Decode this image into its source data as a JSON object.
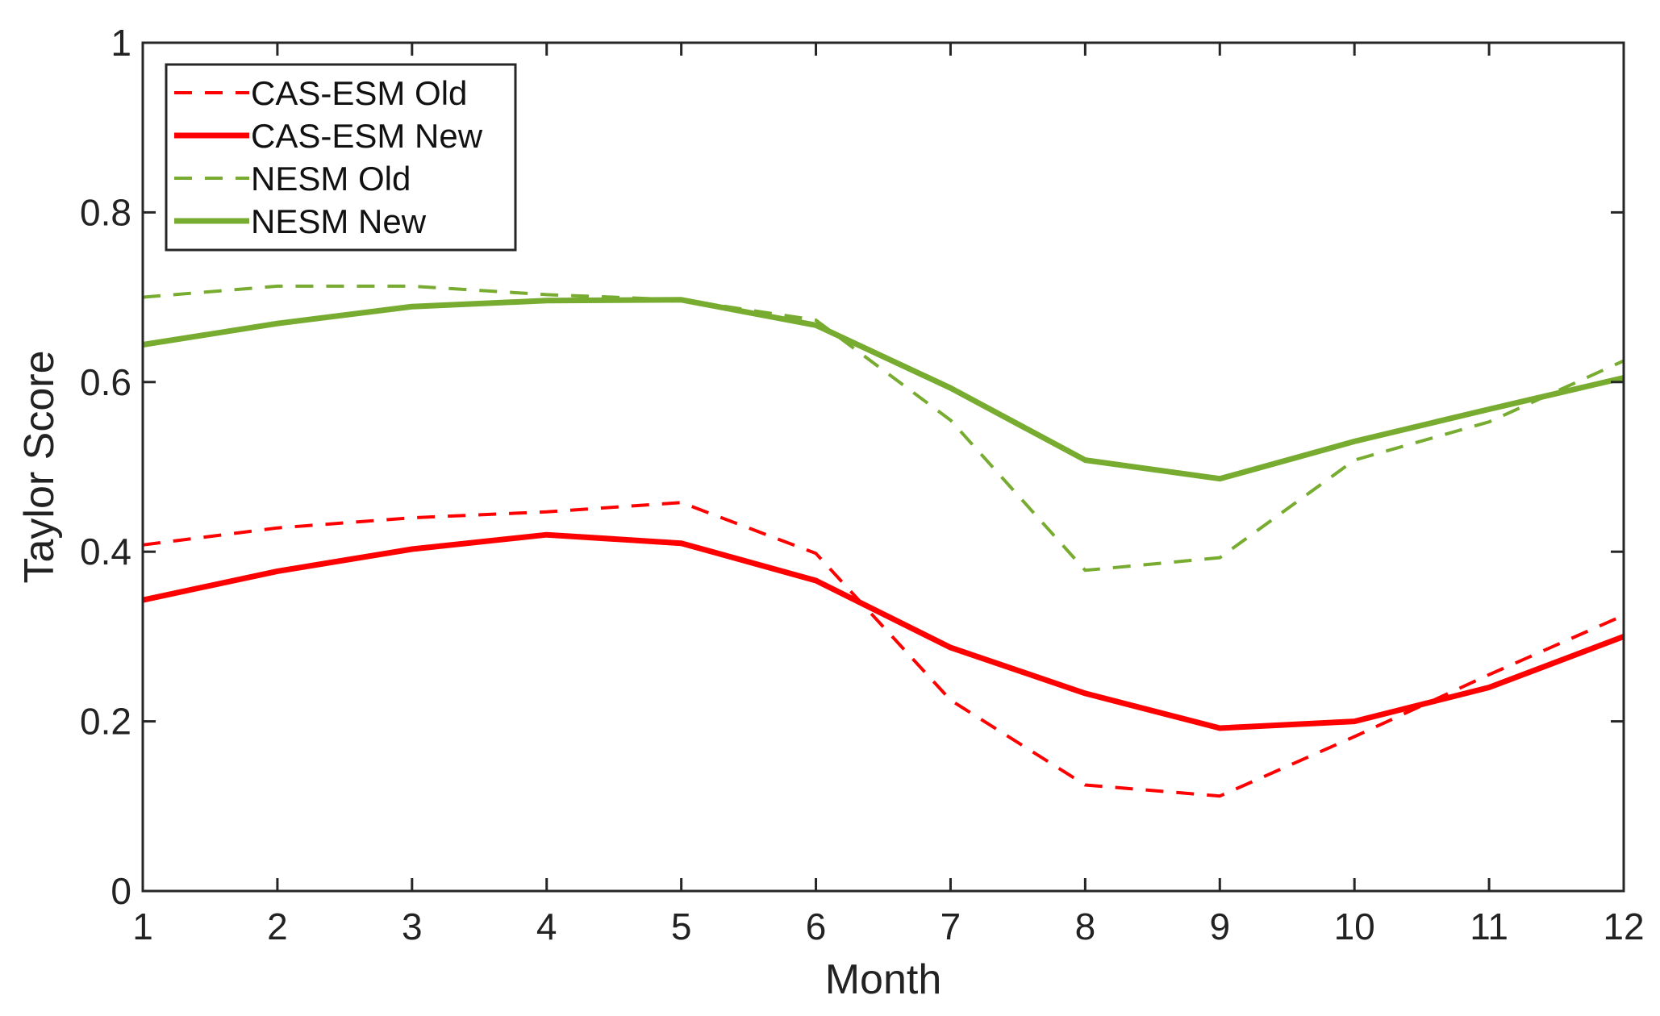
{
  "chart_data": {
    "type": "line",
    "title": "",
    "xlabel": "Month",
    "ylabel": "Taylor Score",
    "x": [
      1,
      2,
      3,
      4,
      5,
      6,
      7,
      8,
      9,
      10,
      11,
      12
    ],
    "xlim": [
      1,
      12
    ],
    "ylim": [
      0,
      1
    ],
    "xticks": [
      "1",
      "2",
      "3",
      "4",
      "5",
      "6",
      "7",
      "8",
      "9",
      "10",
      "11",
      "12"
    ],
    "yticks": [
      "0",
      "0.2",
      "0.4",
      "0.6",
      "0.8",
      "1"
    ],
    "grid": false,
    "legend_position": "top-left",
    "series": [
      {
        "name": "CAS-ESM Old",
        "color": "#ff0000",
        "line_style": "dashed",
        "values": [
          0.408,
          0.428,
          0.44,
          0.447,
          0.458,
          0.398,
          0.225,
          0.125,
          0.112,
          0.182,
          0.255,
          0.325
        ]
      },
      {
        "name": "CAS-ESM New",
        "color": "#ff0000",
        "line_style": "solid",
        "values": [
          0.343,
          0.377,
          0.403,
          0.42,
          0.41,
          0.366,
          0.287,
          0.233,
          0.192,
          0.2,
          0.24,
          0.3
        ]
      },
      {
        "name": "NESM Old",
        "color": "#77ac30",
        "line_style": "dashed",
        "values": [
          0.7,
          0.713,
          0.713,
          0.703,
          0.697,
          0.673,
          0.555,
          0.378,
          0.393,
          0.508,
          0.553,
          0.625
        ]
      },
      {
        "name": "NESM New",
        "color": "#77ac30",
        "line_style": "solid",
        "values": [
          0.644,
          0.669,
          0.689,
          0.696,
          0.697,
          0.667,
          0.593,
          0.508,
          0.486,
          0.53,
          0.568,
          0.605
        ]
      }
    ]
  }
}
